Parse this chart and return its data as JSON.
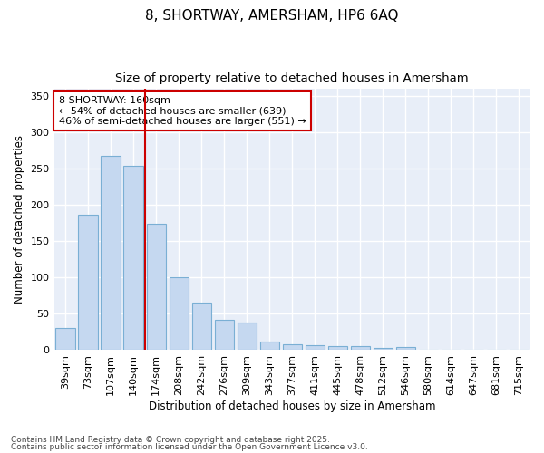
{
  "title1": "8, SHORTWAY, AMERSHAM, HP6 6AQ",
  "title2": "Size of property relative to detached houses in Amersham",
  "xlabel": "Distribution of detached houses by size in Amersham",
  "ylabel": "Number of detached properties",
  "bar_color": "#c5d8f0",
  "bar_edge_color": "#7aafd4",
  "background_color": "#e8eef8",
  "fig_background_color": "#ffffff",
  "grid_color": "#ffffff",
  "categories": [
    "39sqm",
    "73sqm",
    "107sqm",
    "140sqm",
    "174sqm",
    "208sqm",
    "242sqm",
    "276sqm",
    "309sqm",
    "343sqm",
    "377sqm",
    "411sqm",
    "445sqm",
    "478sqm",
    "512sqm",
    "546sqm",
    "580sqm",
    "614sqm",
    "647sqm",
    "681sqm",
    "715sqm"
  ],
  "values": [
    30,
    187,
    268,
    254,
    174,
    100,
    65,
    42,
    38,
    12,
    8,
    7,
    6,
    5,
    3,
    4,
    1,
    0,
    0,
    0,
    1
  ],
  "vline_x": 3.5,
  "annotation_text": "8 SHORTWAY: 160sqm\n← 54% of detached houses are smaller (639)\n46% of semi-detached houses are larger (551) →",
  "annotation_box_color": "#ffffff",
  "annotation_box_edge_color": "#cc0000",
  "vline_color": "#cc0000",
  "ylim": [
    0,
    360
  ],
  "yticks": [
    0,
    50,
    100,
    150,
    200,
    250,
    300,
    350
  ],
  "footer1": "Contains HM Land Registry data © Crown copyright and database right 2025.",
  "footer2": "Contains public sector information licensed under the Open Government Licence v3.0.",
  "title1_fontsize": 11,
  "title2_fontsize": 9.5,
  "axis_label_fontsize": 8.5,
  "tick_fontsize": 8,
  "annotation_fontsize": 8,
  "footer_fontsize": 6.5
}
